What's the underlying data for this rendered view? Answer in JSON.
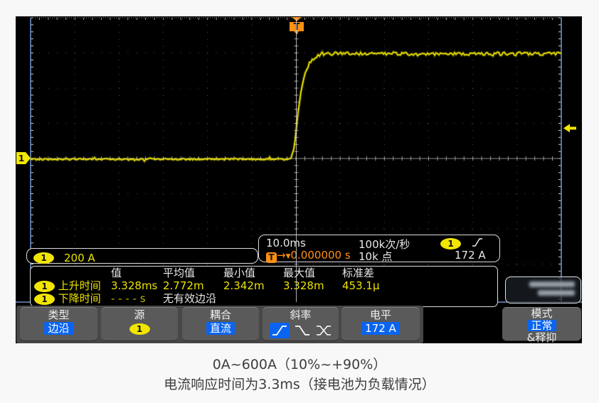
{
  "screen": {
    "channel_badge": "1",
    "channel_scale": "200 A",
    "timebase": "10.0ms",
    "trigger_badge": "T",
    "trigger_offset": "0.000000 s",
    "sample_rate": "100k次/秒",
    "memory_depth": "10k 点",
    "trigger_source_badge": "1",
    "trigger_level": "172 A"
  },
  "measurements": {
    "headers": [
      "值",
      "平均值",
      "最小值",
      "最大值",
      "标准差"
    ],
    "rows": [
      {
        "badge": "1",
        "label": "上升时间",
        "values": [
          "3.328ms",
          "2.772m",
          "2.342m",
          "3.328m",
          "453.1µ"
        ]
      },
      {
        "badge": "1",
        "label": "下降时间",
        "value": "- - - - s",
        "note": "无有效边沿"
      }
    ]
  },
  "menu": {
    "type_title": "类型",
    "type_value": "边沿",
    "source_title": "源",
    "source_badge": "1",
    "coupling_title": "耦合",
    "coupling_value": "直流",
    "slope_title": "斜率",
    "slope_selected": "rising-edge",
    "slope_icons": [
      "rising-edge",
      "falling-edge",
      "either-edge"
    ],
    "level_title": "电平",
    "level_value": "172 A",
    "mode_title": "模式",
    "mode_value": "正常",
    "mode_suffix": "&释抑"
  },
  "caption": {
    "line1": "0A~600A（10%~+90%）",
    "line2": "电流响应时间为3.3ms（接电池为负载情况）"
  },
  "colors": {
    "channel_yellow": "#ece300",
    "trigger_orange": "#ff9011",
    "menu_highlight_blue": "#0a64f0",
    "graticule_blue_edge": "#6f8fc4"
  },
  "chart_data": {
    "type": "line",
    "title": "CH1 current step response",
    "x_units": "ms",
    "y_units": "A",
    "timebase_per_div": "10.0ms",
    "vertical_scale_per_div": "200 A",
    "x_divs": 12,
    "y_divs": 8,
    "trigger_offset_s": 0.0,
    "trigger_level_A": 172,
    "series": [
      {
        "name": "CH1",
        "description": "step from 0 A to ~600 A, rise time 3.328 ms",
        "points": [
          [
            -60,
            0
          ],
          [
            -5,
            0
          ],
          [
            -2,
            0
          ],
          [
            -1.3,
            5
          ],
          [
            -0.7,
            40
          ],
          [
            -0.3,
            100
          ],
          [
            0,
            172
          ],
          [
            0.5,
            290
          ],
          [
            1,
            380
          ],
          [
            1.6,
            450
          ],
          [
            2.2,
            500
          ],
          [
            3,
            545
          ],
          [
            3.8,
            572
          ],
          [
            4.8,
            590
          ],
          [
            6,
            598
          ],
          [
            8,
            601
          ],
          [
            10,
            600
          ],
          [
            60,
            600
          ]
        ]
      }
    ]
  }
}
